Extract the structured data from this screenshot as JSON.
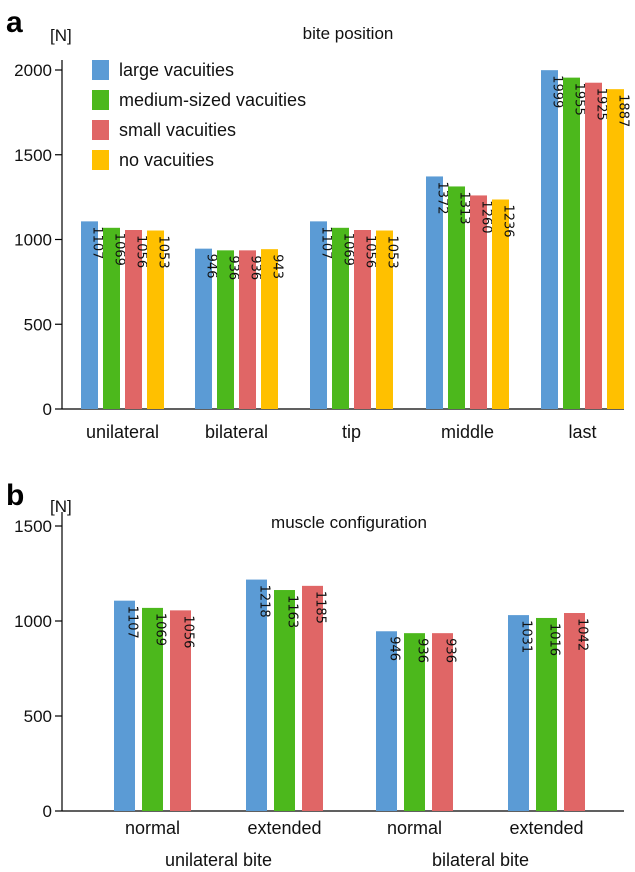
{
  "colors": {
    "large": "#5b9bd5",
    "medium": "#4cb81c",
    "small": "#e06666",
    "none": "#ffc000",
    "axis": "#000000"
  },
  "chart_data": [
    {
      "panel": "a",
      "type": "bar",
      "title": "bite position",
      "ylabel": "[N]",
      "ylim": [
        0,
        2000
      ],
      "yticks": [
        0,
        500,
        1000,
        1500,
        2000
      ],
      "categories": [
        "unilateral",
        "bilateral",
        "tip",
        "middle",
        "last"
      ],
      "legend_position": "top-left",
      "series": [
        {
          "name": "large vacuities",
          "color_key": "large",
          "values": [
            1107,
            946,
            1107,
            1372,
            1999
          ]
        },
        {
          "name": "medium-sized vacuities",
          "color_key": "medium",
          "values": [
            1069,
            936,
            1069,
            1313,
            1955
          ]
        },
        {
          "name": "small vacuities",
          "color_key": "small",
          "values": [
            1056,
            936,
            1056,
            1260,
            1925
          ]
        },
        {
          "name": "no vacuities",
          "color_key": "none",
          "values": [
            1053,
            943,
            1053,
            1236,
            1887
          ]
        }
      ]
    },
    {
      "panel": "b",
      "type": "bar",
      "title": "muscle configuration",
      "ylabel": "[N]",
      "ylim": [
        0,
        1500
      ],
      "yticks": [
        0,
        500,
        1000,
        1500
      ],
      "categories": [
        "normal",
        "extended",
        "normal",
        "extended"
      ],
      "groups": [
        {
          "label": "unilateral bite",
          "categories": [
            0,
            1
          ]
        },
        {
          "label": "bilateral bite",
          "categories": [
            2,
            3
          ]
        }
      ],
      "series": [
        {
          "name": "large vacuities",
          "color_key": "large",
          "values": [
            1107,
            1218,
            946,
            1031
          ]
        },
        {
          "name": "medium-sized vacuities",
          "color_key": "medium",
          "values": [
            1069,
            1163,
            936,
            1016
          ]
        },
        {
          "name": "small vacuities",
          "color_key": "small",
          "values": [
            1056,
            1185,
            936,
            1042
          ]
        }
      ]
    }
  ]
}
